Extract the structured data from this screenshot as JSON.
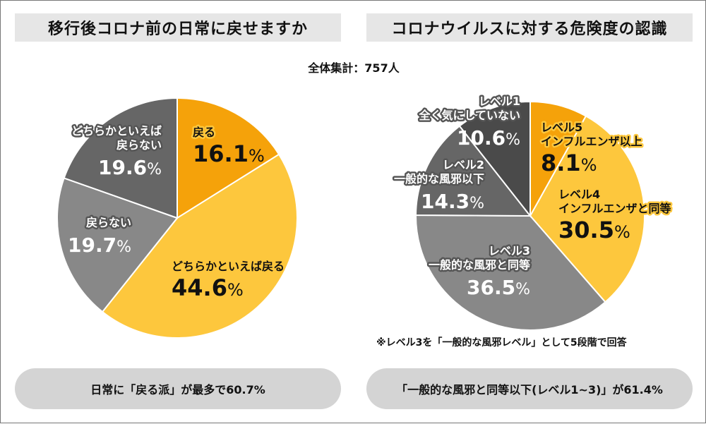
{
  "total_label": "全体集計：757人",
  "chart_data": [
    {
      "type": "pie",
      "title": "移行後コロナ前の日常に戻せますか",
      "slices": [
        {
          "name": "戻る",
          "label_lines": [
            "戻る"
          ],
          "value": 16.1,
          "display": "16.1",
          "color": "#f5a20a",
          "label_style": "dark"
        },
        {
          "name": "どちらかといえば戻る",
          "label_lines": [
            "どちらかといえば戻る"
          ],
          "value": 44.6,
          "display": "44.6",
          "color": "#fdc73d",
          "label_style": "dark"
        },
        {
          "name": "戻らない",
          "label_lines": [
            "戻らない"
          ],
          "value": 19.7,
          "display": "19.7",
          "color": "#888888",
          "label_style": "light"
        },
        {
          "name": "どちらかといえば戻らない",
          "label_lines": [
            "どちらかといえば",
            "戻らない"
          ],
          "value": 19.6,
          "display": "19.6",
          "color": "#666666",
          "label_style": "light"
        }
      ],
      "summary": "日常に「戻る派」が最多で60.7%"
    },
    {
      "type": "pie",
      "title": "コロナウイルスに対する危険度の認識",
      "slices": [
        {
          "name": "レベル5 インフルエンザ以上",
          "label_lines": [
            "レベル5",
            "インフルエンザ以上"
          ],
          "value": 8.1,
          "display": "8.1",
          "color": "#f5a20a",
          "label_style": "dark"
        },
        {
          "name": "レベル4 インフルエンザと同等",
          "label_lines": [
            "レベル4",
            "インフルエンザと同等"
          ],
          "value": 30.5,
          "display": "30.5",
          "color": "#fdc73d",
          "label_style": "dark"
        },
        {
          "name": "レベル3 一般的な風邪と同等",
          "label_lines": [
            "レベル3",
            "一般的な風邪と同等"
          ],
          "value": 36.5,
          "display": "36.5",
          "color": "#888888",
          "label_style": "light"
        },
        {
          "name": "レベル2 一般的な風邪以下",
          "label_lines": [
            "レベル2",
            "一般的な風邪以下"
          ],
          "value": 14.3,
          "display": "14.3",
          "color": "#666666",
          "label_style": "light"
        },
        {
          "name": "レベル1 全く気にしていない",
          "label_lines": [
            "レベル1",
            "全く気にしていない"
          ],
          "value": 10.6,
          "display": "10.6",
          "color": "#4a4a4a",
          "label_style": "light"
        }
      ],
      "note": "※レベル3を「一般的な風邪レベル」として5段階で回答",
      "summary": "「一般的な風邪と同等以下(レベル1~3)」が61.4%"
    }
  ],
  "percent_sign": "%"
}
